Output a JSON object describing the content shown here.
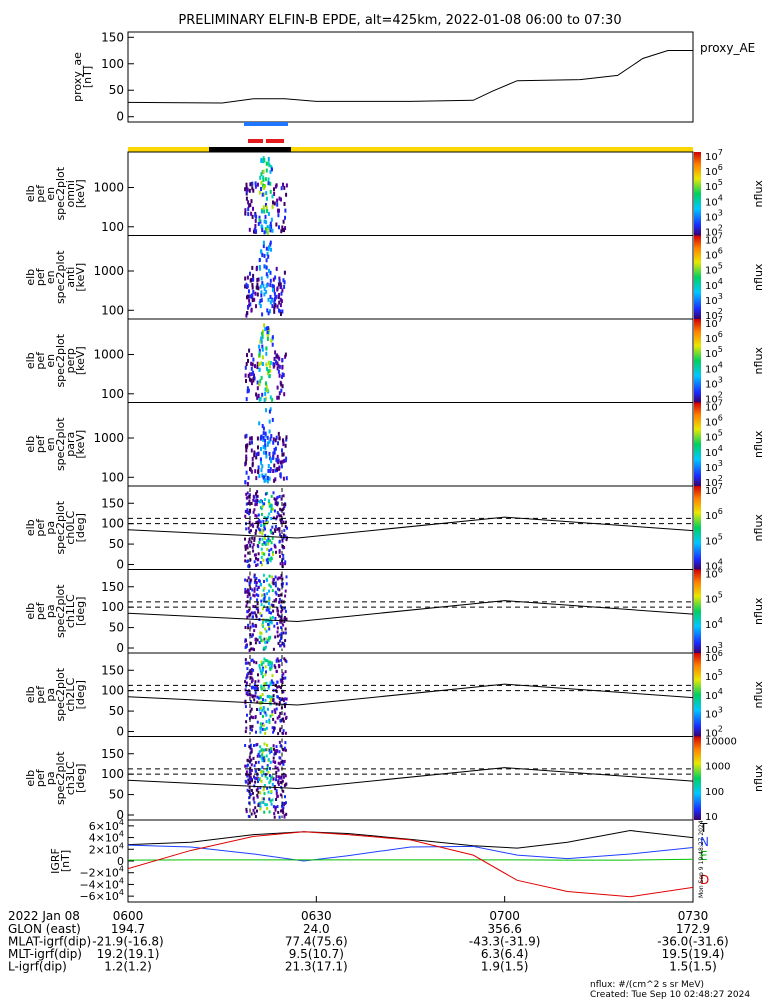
{
  "title": "PRELIMINARY ELFIN-B EPDE, alt=425km, 2022-01-08 06:00 to 07:30",
  "colors": {
    "sci_bar_blue": "#1f77ff",
    "sci_bar_red": "#e41a1c",
    "orbit_yellow": "#ffd700",
    "orbit_black": "#000000",
    "trace_T": "#000000",
    "trace_N": "#1f3fff",
    "trace_E": "#00c000",
    "trace_D": "#e00000"
  },
  "chart_data": [
    {
      "type": "line",
      "name": "proxy_ae",
      "legend": "proxy_AE",
      "ylabel": [
        "proxy_ae",
        "[nT]"
      ],
      "ylim": [
        -10,
        160
      ],
      "ticks": [
        "0",
        "50",
        "100",
        "150"
      ],
      "x_minutes": [
        0,
        15,
        20,
        25,
        30,
        45,
        55,
        58,
        62,
        72,
        78,
        82,
        86,
        90
      ],
      "values": [
        27,
        26,
        34,
        34,
        29,
        29,
        31,
        48,
        68,
        70,
        78,
        110,
        125,
        125
      ]
    },
    {
      "type": "heatmap",
      "name": "spec2plot-omni",
      "ylabel": [
        "elb",
        "pef",
        "en",
        "spec2plot",
        "omni",
        "[keV]"
      ],
      "ticks": [
        "100",
        "1000"
      ],
      "scale": "log",
      "colorbar": {
        "label": "nflux",
        "ticks": [
          "10^2",
          "10^3",
          "10^4",
          "10^5",
          "10^6",
          "10^7"
        ]
      }
    },
    {
      "type": "heatmap",
      "name": "spec2plot-anti",
      "ylabel": [
        "elb",
        "pef",
        "en",
        "spec2plot",
        "anti",
        "[keV]"
      ],
      "ticks": [
        "100",
        "1000"
      ],
      "scale": "log",
      "colorbar": {
        "label": "nflux",
        "ticks": [
          "10^2",
          "10^3",
          "10^4",
          "10^5",
          "10^6",
          "10^7"
        ]
      }
    },
    {
      "type": "heatmap",
      "name": "spec2plot-perp",
      "ylabel": [
        "elb",
        "pef",
        "en",
        "spec2plot",
        "perp",
        "[keV]"
      ],
      "ticks": [
        "100",
        "1000"
      ],
      "scale": "log",
      "colorbar": {
        "label": "nflux",
        "ticks": [
          "10^2",
          "10^3",
          "10^4",
          "10^5",
          "10^6",
          "10^7"
        ]
      }
    },
    {
      "type": "heatmap",
      "name": "spec2plot-para",
      "ylabel": [
        "elb",
        "pef",
        "en",
        "spec2plot",
        "para",
        "[keV]"
      ],
      "ticks": [
        "100",
        "1000"
      ],
      "scale": "log",
      "colorbar": {
        "label": "nflux",
        "ticks": [
          "10^2",
          "10^3",
          "10^4",
          "10^5",
          "10^6",
          "10^7"
        ]
      }
    },
    {
      "type": "heatmap",
      "name": "spec2plot-ch0LC",
      "ylabel": [
        "elb",
        "pef",
        "pa",
        "spec2plot",
        "ch0LC",
        "[deg]"
      ],
      "ticks": [
        "0",
        "50",
        "100",
        "150"
      ],
      "ylim": [
        0,
        180
      ],
      "dashed_levels": [
        100,
        113
      ],
      "colorbar": {
        "label": "nflux",
        "ticks": [
          "10^4",
          "10^5",
          "10^6",
          "10^7"
        ]
      }
    },
    {
      "type": "heatmap",
      "name": "spec2plot-ch1LC",
      "ylabel": [
        "elb",
        "pef",
        "pa",
        "spec2plot",
        "ch1LC",
        "[deg]"
      ],
      "ticks": [
        "0",
        "50",
        "100",
        "150"
      ],
      "ylim": [
        0,
        180
      ],
      "dashed_levels": [
        100,
        113
      ],
      "colorbar": {
        "label": "nflux",
        "ticks": [
          "10^3",
          "10^4",
          "10^5",
          "10^6"
        ]
      }
    },
    {
      "type": "heatmap",
      "name": "spec2plot-ch2LC",
      "ylabel": [
        "elb",
        "pef",
        "pa",
        "spec2plot",
        "ch2LC",
        "[deg]"
      ],
      "ticks": [
        "0",
        "50",
        "100",
        "150"
      ],
      "ylim": [
        0,
        180
      ],
      "dashed_levels": [
        100,
        113
      ],
      "colorbar": {
        "label": "nflux",
        "ticks": [
          "10^2",
          "10^3",
          "10^4",
          "10^5",
          "10^6"
        ]
      }
    },
    {
      "type": "heatmap",
      "name": "spec2plot-ch3LC",
      "ylabel": [
        "elb",
        "pef",
        "pa",
        "spec2plot",
        "ch3LC",
        "[deg]"
      ],
      "ticks": [
        "0",
        "50",
        "100",
        "150"
      ],
      "ylim": [
        0,
        180
      ],
      "dashed_levels": [
        100,
        113
      ],
      "colorbar": {
        "label": "nflux",
        "ticks": [
          "10",
          "100",
          "1000",
          "10000"
        ]
      }
    },
    {
      "type": "line",
      "name": "IGRF",
      "ylabel": [
        "IGRF",
        "[nT]"
      ],
      "ylim": [
        -70000,
        70000
      ],
      "ticks": [
        "6×10^4",
        "4×10^4",
        "2×10^4",
        "0",
        "−2×10^4",
        "−4×10^4",
        "−6×10^4"
      ],
      "x_minutes": [
        0,
        10,
        20,
        28,
        35,
        45,
        55,
        62,
        70,
        80,
        90
      ],
      "series": [
        {
          "name": "T",
          "values": [
            28000,
            32000,
            45000,
            50000,
            47000,
            37000,
            26000,
            22000,
            32000,
            52000,
            40000
          ]
        },
        {
          "name": "N",
          "values": [
            27000,
            24000,
            12000,
            0,
            9000,
            24000,
            25000,
            10000,
            4000,
            12000,
            23000
          ]
        },
        {
          "name": "E",
          "values": [
            1500,
            2000,
            2000,
            2000,
            2000,
            2000,
            2000,
            2000,
            1500,
            1500,
            3000
          ]
        },
        {
          "name": "D",
          "values": [
            -13000,
            18000,
            42000,
            50000,
            45000,
            36000,
            10000,
            -33000,
            -52000,
            -61000,
            -45000
          ]
        }
      ]
    }
  ],
  "time_axis": {
    "date_label": "2022 Jan 08",
    "ticks": [
      "0600",
      "0630",
      "0700",
      "0730"
    ]
  },
  "orbit_table": [
    {
      "label": "GLON (east)",
      "values": [
        "194.7",
        "24.0",
        "356.6",
        "172.9"
      ]
    },
    {
      "label": "MLAT-igrf(dip)",
      "values": [
        "-21.9(-16.8)",
        "77.4(75.6)",
        "-43.3(-31.9)",
        "-36.0(-31.6)"
      ]
    },
    {
      "label": "MLT-igrf(dip)",
      "values": [
        "19.2(19.1)",
        "9.5(10.7)",
        "6.3(6.4)",
        "19.5(19.4)"
      ]
    },
    {
      "label": "L-igrf(dip)",
      "values": [
        "1.2(1.2)",
        "21.3(17.1)",
        "1.9(1.5)",
        "1.5(1.5)"
      ]
    }
  ],
  "footer": {
    "units": "nflux: #/(cm^2 s sr MeV)",
    "created": "Created: Tue Sep 10 02:48:27 2024"
  },
  "side_stamp": "Mon Sep  9 19:48:27 2024"
}
